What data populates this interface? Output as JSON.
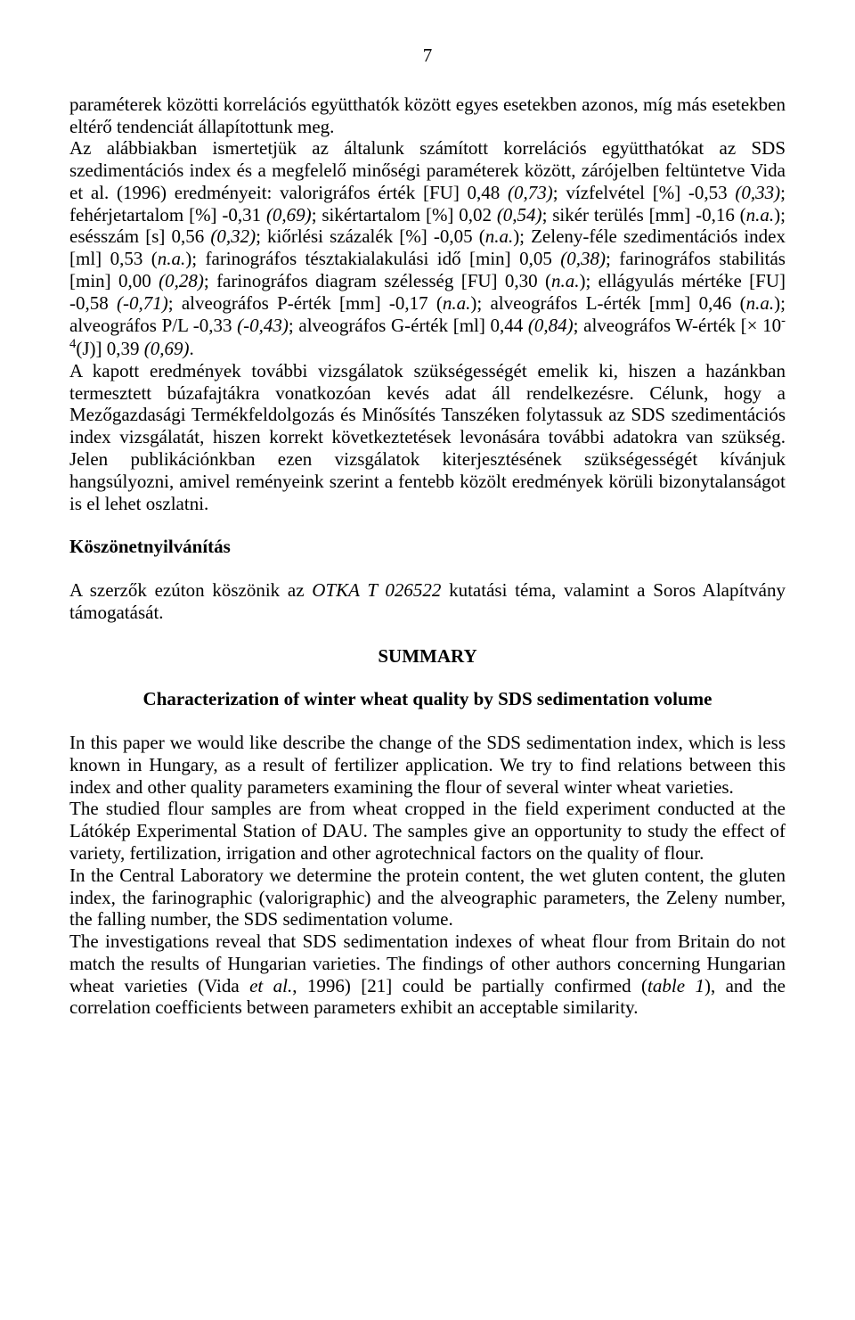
{
  "page_number": "7",
  "para1": "paraméterek közötti korrelációs együtthatók között egyes esetekben azonos, míg más esetekben eltérő tendenciát állapítottunk meg.",
  "para2_pre": "Az alábbiakban ismertetjük az általunk számított korrelációs együtthatókat az SDS szedimentációs index és a megfelelő minőségi paraméterek között, zárójelben feltüntetve Vida et al. (1996) eredményeit: valorigráfos érték [FU] 0,48 ",
  "para2_i1": "(0,73)",
  "para2_a": "; vízfelvétel [%] -0,53 ",
  "para2_i2": "(0,33)",
  "para2_b": "; fehérjetartalom [%] -0,31 ",
  "para2_i3": "(0,69)",
  "para2_c": "; sikértartalom [%] 0,02 ",
  "para2_i4": "(0,54)",
  "para2_d": "; sikér terülés [mm] -0,16 (",
  "para2_na1": "n.a.",
  "para2_e": "); esésszám [s] 0,56 ",
  "para2_i5": "(0,32)",
  "para2_f": "; kiőrlési százalék [%] -0,05 (",
  "para2_na2": "n.a.",
  "para2_g": "); Zeleny-féle szedimentációs index [ml] 0,53 (",
  "para2_na3": "n.a.",
  "para2_h": "); farinográfos tésztakialakulási idő [min] 0,05 ",
  "para2_i6": "(0,38)",
  "para2_i": "; farinográfos stabilitás [min] 0,00 ",
  "para2_i7": "(0,28)",
  "para2_j": "; farinográfos diagram szélesség [FU] 0,30 (",
  "para2_na4": "n.a.",
  "para2_k": "); ellágyulás mértéke [FU] -0,58 ",
  "para2_i8": "(-0,71)",
  "para2_l": "; alveográfos P-érték [mm] -0,17 (",
  "para2_na5": "n.a.",
  "para2_m": "); alveográfos L-érték [mm] 0,46 (",
  "para2_na6": "n.a.",
  "para2_n": "); alveográfos P/L -0,33 ",
  "para2_i9": "(-0,43)",
  "para2_o": "; alveográfos G-érték [ml] 0,44 ",
  "para2_i10": "(0,84)",
  "para2_p": "; alveográfos W-érték [× 10",
  "para2_sup": "-4",
  "para2_q": "(J)] 0,39 ",
  "para2_i11": "(0,69)",
  "para2_r": ".",
  "para3": "A kapott eredmények további vizsgálatok szükségességét emelik ki, hiszen a hazánkban termesztett búzafajtákra vonatkozóan kevés adat áll rendelkezésre. Célunk, hogy a Mezőgazdasági Termékfeldolgozás és Minősítés Tanszéken folytassuk az SDS szedimentációs index vizsgálatát, hiszen korrekt következtetések levonására további adatokra van szükség. Jelen publikációnkban ezen vizsgálatok kiterjesztésének szükségességét kívánjuk hangsúlyozni, amivel reményeink szerint a fentebb közölt eredmények körüli bizonytalanságot is el lehet oszlatni.",
  "ack_title": "Köszönetnyilvánítás",
  "ack_body_a": "A szerzők ezúton köszönik az ",
  "ack_body_i": "OTKA T 026522",
  "ack_body_b": " kutatási téma, valamint a Soros Alapítvány támogatását.",
  "summary_heading": "SUMMARY",
  "summary_subtitle": "Characterization of winter wheat quality by SDS sedimentation volume",
  "sum_p1": "In this paper we would like describe the change of the SDS sedimentation index, which is less known in Hungary, as a result of fertilizer application. We try to find relations between this index and other quality parameters examining the flour of several winter wheat varieties.",
  "sum_p2": "The studied flour samples are from wheat cropped in the field experiment conducted at the Látókép Experimental Station of DAU. The samples give an opportunity to study the effect of variety, fertilization, irrigation and other agrotechnical factors on the quality of flour.",
  "sum_p3": "In the Central Laboratory we determine the protein content, the wet gluten content, the gluten index, the farinographic (valorigraphic) and the alveographic parameters, the Zeleny number, the falling number, the SDS sedimentation volume.",
  "sum_p4_a": "The investigations reveal that SDS sedimentation indexes of wheat flour from Britain do not match the results of Hungarian varieties. The findings of other authors concerning Hungarian wheat varieties (Vida ",
  "sum_p4_i1": "et al.",
  "sum_p4_b": ", 1996) [21] could be partially confirmed (",
  "sum_p4_i2": "table 1",
  "sum_p4_c": "), and the correlation coefficients between parameters exhibit an acceptable similarity."
}
